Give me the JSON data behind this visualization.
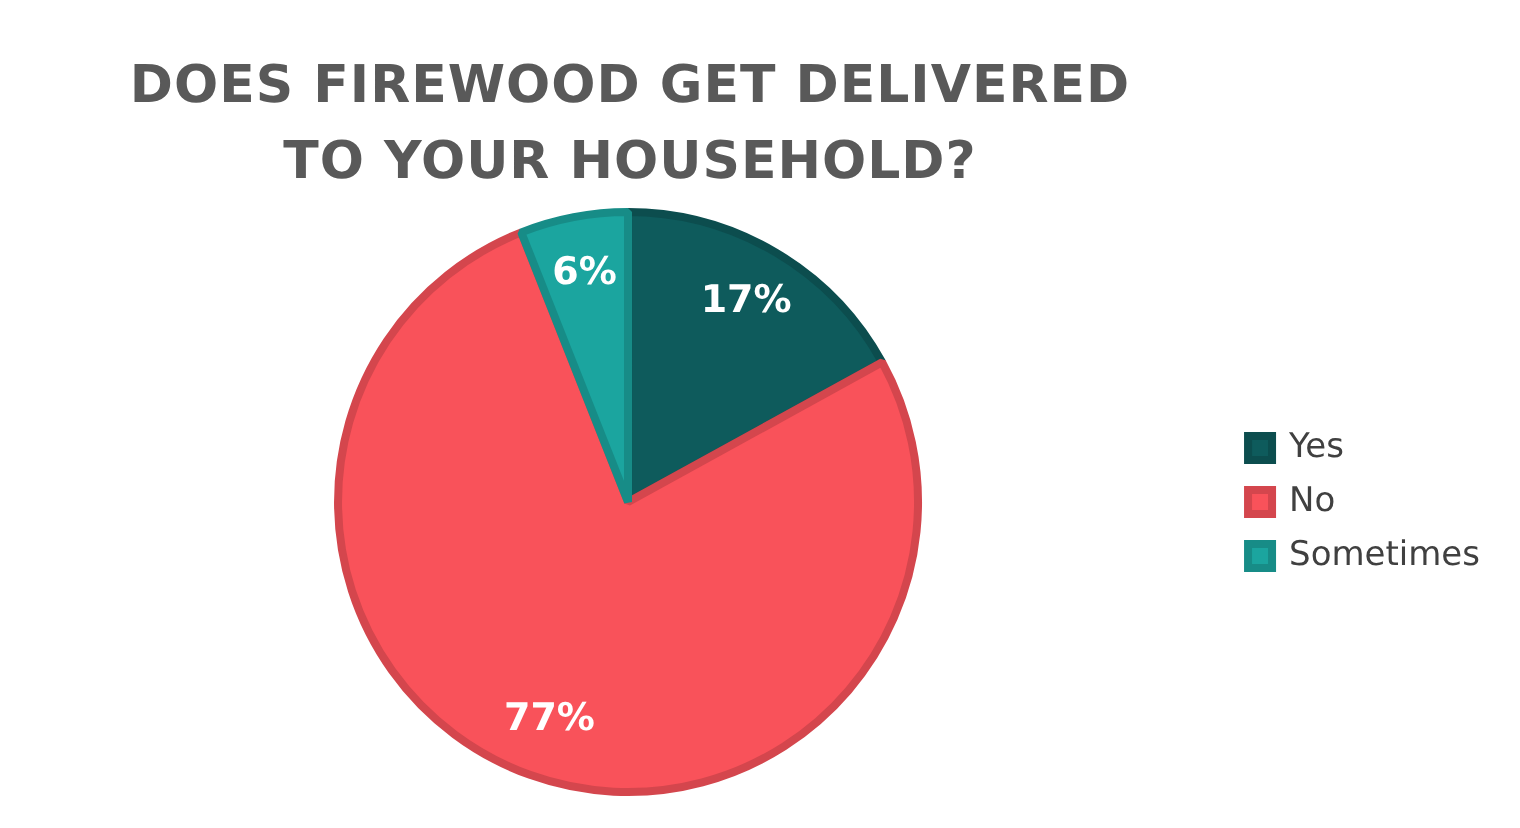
{
  "chart_data": {
    "type": "pie",
    "title": "DOES FIREWOOD GET DELIVERED TO YOUR HOUSEHOLD?",
    "categories": [
      "Yes",
      "No",
      "Sometimes"
    ],
    "values": [
      17,
      77,
      6
    ],
    "colors": [
      "#0e5b5c",
      "#f9525a",
      "#1ba59f"
    ],
    "value_labels": [
      "17%",
      "77%",
      "6%"
    ],
    "legend": "right"
  }
}
